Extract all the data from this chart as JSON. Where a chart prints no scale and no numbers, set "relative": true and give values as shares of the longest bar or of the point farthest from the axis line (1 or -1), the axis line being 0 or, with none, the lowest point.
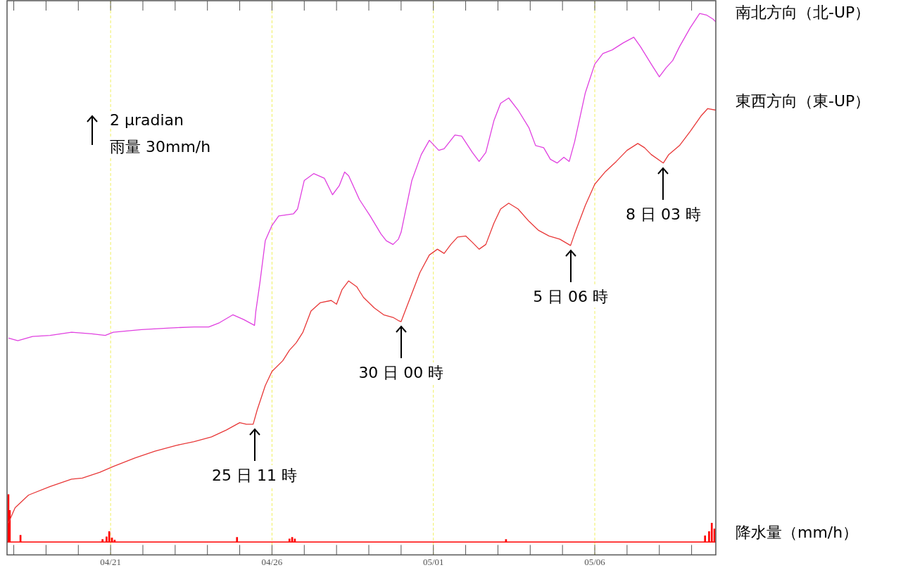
{
  "chart_data": {
    "type": "line",
    "relative": true,
    "ref_lines": [
      {
        "axis": "x",
        "value": "--04-21",
        "color": "#f0f060",
        "line_style": "dashed"
      },
      {
        "axis": "x",
        "value": "--04-26",
        "color": "#f0f060",
        "line_style": "dashed"
      },
      {
        "axis": "x",
        "value": "--05-01",
        "color": "#f0f060",
        "line_style": "dashed"
      },
      {
        "axis": "x",
        "value": "--05-06",
        "color": "#f0f060",
        "line_style": "dashed"
      }
    ],
    "xlim": [
      "--04-17T19:00",
      "--05-09T18:00"
    ],
    "xticks": [
      {
        "value": "--04-18",
        "label": null
      },
      {
        "value": "--04-19",
        "label": null
      },
      {
        "value": "--04-20",
        "label": null
      },
      {
        "value": "--04-21",
        "label": "04/21"
      },
      {
        "value": "--04-22",
        "label": null
      },
      {
        "value": "--04-23",
        "label": null
      },
      {
        "value": "--04-24",
        "label": null
      },
      {
        "value": "--04-25",
        "label": null
      },
      {
        "value": "--04-26",
        "label": "04/26"
      },
      {
        "value": "--04-27",
        "label": null
      },
      {
        "value": "--04-28",
        "label": null
      },
      {
        "value": "--04-29",
        "label": null
      },
      {
        "value": "--04-30",
        "label": null
      },
      {
        "value": "--05-01",
        "label": "05/01"
      },
      {
        "value": "--05-02",
        "label": null
      },
      {
        "value": "--05-03",
        "label": null
      },
      {
        "value": "--05-04",
        "label": null
      },
      {
        "value": "--05-05",
        "label": null
      },
      {
        "value": "--05-06",
        "label": "05/06"
      },
      {
        "value": "--05-07",
        "label": null
      },
      {
        "value": "--05-08",
        "label": null
      },
      {
        "value": "--05-09",
        "label": null
      }
    ],
    "annotations": [
      "2 μradian",
      "雨量 30mm/h",
      {
        "text": "25 日 11 時",
        "x": "--04-25T11:00",
        "y": 0.223
      },
      {
        "text": "30 日 00 時",
        "x": "--04-30T00:00",
        "y": 0.417
      },
      {
        "text": "5 日 06 時",
        "x": "--05-05T06:00",
        "y": 0.561
      },
      {
        "text": "8 日 03 時",
        "x": "--05-08T03:00",
        "y": 0.717
      }
    ],
    "series": [
      {
        "name": "南北方向（北-UP）",
        "color": "#e040e0",
        "x": [
          "--04-17T20:00",
          "--04-18T03:00",
          "--04-18T14:00",
          "--04-19T03:00",
          "--04-19T19:00",
          "--04-20T10:00",
          "--04-20T20:00",
          "--04-21T02:00",
          "--04-21T23:00",
          "--04-22T20:00",
          "--04-23T14:00",
          "--04-24T01:00",
          "--04-24T09:00",
          "--04-24T19:00",
          "--04-25T03:00",
          "--04-25T11:00",
          "--04-25T12:00",
          "--04-25T15:00",
          "--04-25T19:00",
          "--04-26T00:00",
          "--04-26T05:00",
          "--04-26T16:00",
          "--04-26T19:00",
          "--04-27T00:00",
          "--04-27T07:00",
          "--04-27T15:00",
          "--04-27T21:00",
          "--04-28T02:00",
          "--04-28T06:00",
          "--04-28T09:00",
          "--04-28T17:00",
          "--04-29T01:00",
          "--04-29T09:00",
          "--04-29T13:00",
          "--04-29T18:00",
          "--04-29T22:00",
          "--04-30T00:00",
          "--04-30T03:00",
          "--04-30T08:00",
          "--04-30T15:00",
          "--04-30T21:00",
          "--05-01T04:00",
          "--05-01T08:00",
          "--05-01T16:00",
          "--05-01T21:00",
          "--05-02T05:00",
          "--05-02T10:00",
          "--05-02T15:00",
          "--05-02T21:00",
          "--05-03T02:00",
          "--05-03T08:00",
          "--05-03T15:00",
          "--05-03T23:00",
          "--05-04T04:00",
          "--05-04T10:00",
          "--05-04T15:00",
          "--05-04T20:00",
          "--05-05T01:00",
          "--05-05T05:00",
          "--05-05T09:00",
          "--05-05T17:00",
          "--05-06T00:00",
          "--05-06T06:00",
          "--05-06T13:00",
          "--05-06T21:00",
          "--05-07T05:00",
          "--05-07T10:00",
          "--05-07T18:00",
          "--05-08T00:00",
          "--05-08T05:00",
          "--05-08T10:00",
          "--05-08T15:00",
          "--05-08T23:00",
          "--05-09T06:00",
          "--05-09T11:00",
          "--05-09T16:00",
          "--05-09T18:00"
        ],
        "values": [
          0.386,
          0.381,
          0.389,
          0.391,
          0.397,
          0.394,
          0.391,
          0.397,
          0.402,
          0.405,
          0.407,
          0.407,
          0.415,
          0.43,
          0.421,
          0.41,
          0.437,
          0.49,
          0.57,
          0.599,
          0.617,
          0.621,
          0.63,
          0.684,
          0.697,
          0.688,
          0.657,
          0.674,
          0.7,
          0.693,
          0.648,
          0.617,
          0.583,
          0.57,
          0.563,
          0.573,
          0.586,
          0.623,
          0.684,
          0.733,
          0.76,
          0.741,
          0.744,
          0.77,
          0.768,
          0.737,
          0.72,
          0.737,
          0.797,
          0.83,
          0.84,
          0.817,
          0.784,
          0.75,
          0.746,
          0.724,
          0.717,
          0.728,
          0.72,
          0.757,
          0.85,
          0.904,
          0.924,
          0.931,
          0.944,
          0.955,
          0.937,
          0.904,
          0.88,
          0.897,
          0.911,
          0.937,
          0.973,
          1.0,
          0.997,
          0.989,
          0.984
        ]
      },
      {
        "name": "東西方向（東-UP）",
        "color": "#e83838",
        "x": [
          "--04-17T20:00",
          "--04-18T01:00",
          "--04-18T11:00",
          "--04-19T03:00",
          "--04-19T19:00",
          "--04-20T03:00",
          "--04-20T16:00",
          "--04-21T02:00",
          "--04-21T18:00",
          "--04-22T09:00",
          "--04-23T01:00",
          "--04-23T14:00",
          "--04-24T03:00",
          "--04-24T14:00",
          "--04-25T00:00",
          "--04-25T05:00",
          "--04-25T10:00",
          "--04-25T13:00",
          "--04-25T19:00",
          "--04-26T00:00",
          "--04-26T08:00",
          "--04-26T13:00",
          "--04-26T18:00",
          "--04-26T23:00",
          "--04-27T05:00",
          "--04-27T12:00",
          "--04-27T20:00",
          "--04-28T00:00",
          "--04-28T04:00",
          "--04-28T09:00",
          "--04-28T15:00",
          "--04-28T20:00",
          "--04-29T04:00",
          "--04-29T11:00",
          "--04-29T18:00",
          "--04-29T22:00",
          "--04-30T00:00",
          "--04-30T03:00",
          "--04-30T14:00",
          "--04-30T21:00",
          "--05-01T03:00",
          "--05-01T08:00",
          "--05-01T13:00",
          "--05-01T18:00",
          "--05-02T00:00",
          "--05-02T05:00",
          "--05-02T10:00",
          "--05-02T15:00",
          "--05-02T21:00",
          "--05-03T02:00",
          "--05-03T08:00",
          "--05-03T15:00",
          "--05-03T23:00",
          "--05-04T06:00",
          "--05-04T14:00",
          "--05-04T22:00",
          "--05-05T06:00",
          "--05-05T09:00",
          "--05-05T17:00",
          "--05-06T00:00",
          "--05-06T08:00",
          "--05-06T16:00",
          "--05-07T00:00",
          "--05-07T08:00",
          "--05-07T13:00",
          "--05-07T18:00",
          "--05-08T03:00",
          "--05-08T07:00",
          "--05-08T15:00",
          "--05-08T23:00",
          "--05-09T07:00",
          "--05-09T12:00",
          "--05-09T18:00"
        ],
        "values": [
          0.036,
          0.065,
          0.089,
          0.105,
          0.119,
          0.121,
          0.132,
          0.143,
          0.159,
          0.172,
          0.183,
          0.19,
          0.199,
          0.212,
          0.226,
          0.223,
          0.223,
          0.25,
          0.296,
          0.323,
          0.343,
          0.363,
          0.377,
          0.397,
          0.437,
          0.453,
          0.457,
          0.45,
          0.477,
          0.494,
          0.483,
          0.463,
          0.443,
          0.43,
          0.425,
          0.419,
          0.417,
          0.437,
          0.51,
          0.543,
          0.554,
          0.546,
          0.563,
          0.577,
          0.579,
          0.567,
          0.554,
          0.563,
          0.603,
          0.63,
          0.641,
          0.63,
          0.607,
          0.59,
          0.579,
          0.573,
          0.561,
          0.583,
          0.637,
          0.677,
          0.701,
          0.72,
          0.741,
          0.754,
          0.746,
          0.733,
          0.717,
          0.733,
          0.75,
          0.777,
          0.806,
          0.82,
          0.817
        ]
      },
      {
        "name": "降水量（mm/h）",
        "type": "bar",
        "color": "#ff0000",
        "x": [
          "--04-17T20:00",
          "--04-17T21:00",
          "--04-18T05:00",
          "--04-20T18:00",
          "--04-20T21:00",
          "--04-20T23:00",
          "--04-21T01:00",
          "--04-21T03:00",
          "--04-24T22:00",
          "--04-26T13:00",
          "--04-26T15:00",
          "--04-26T17:00",
          "--05-03T06:00",
          "--05-09T10:00",
          "--05-09T13:00",
          "--05-09T15:00",
          "--05-09T17:00"
        ],
        "values": [
          0.09,
          0.06,
          0.013,
          0.005,
          0.01,
          0.02,
          0.008,
          0.004,
          0.009,
          0.006,
          0.009,
          0.006,
          0.005,
          0.012,
          0.02,
          0.036,
          0.025
        ]
      }
    ]
  }
}
